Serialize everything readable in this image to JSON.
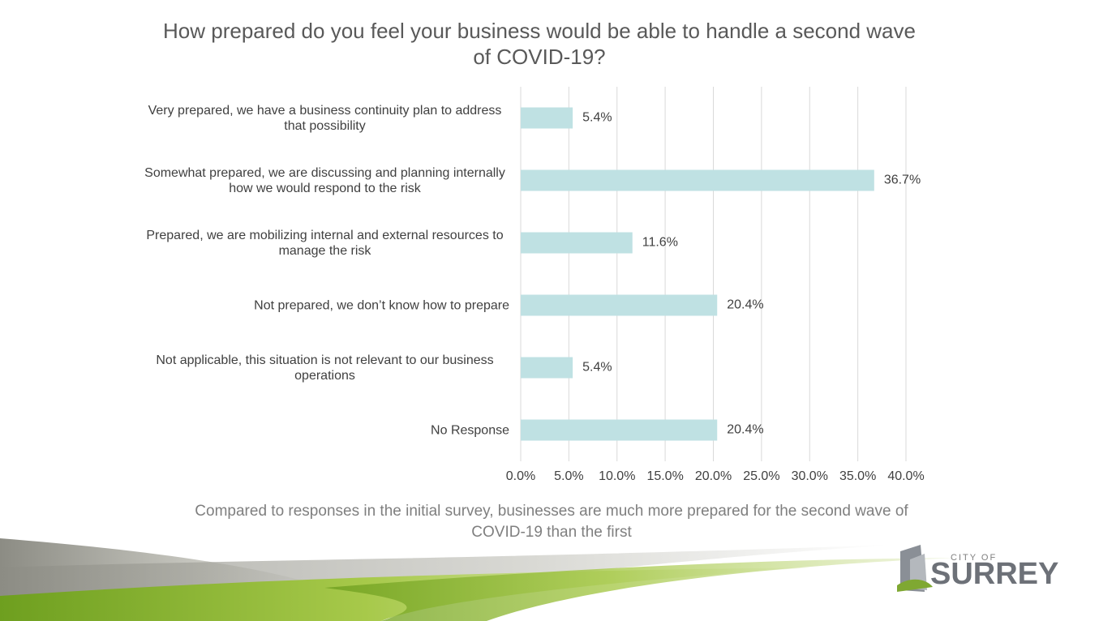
{
  "chart_data": {
    "type": "bar",
    "orientation": "horizontal",
    "title": "How prepared do you feel your business would be able to handle a second wave of COVID-19?",
    "categories": [
      "Very prepared, we have a business continuity plan to address that possibility",
      "Somewhat prepared, we are discussing and planning internally how we would respond to the risk",
      "Prepared, we are mobilizing internal and external resources to manage the risk",
      "Not prepared, we don’t know how to prepare",
      "Not applicable, this situation is not relevant to our business operations",
      "No Response"
    ],
    "values": [
      5.4,
      36.7,
      11.6,
      20.4,
      5.4,
      20.4
    ],
    "value_labels": [
      "5.4%",
      "36.7%",
      "11.6%",
      "20.4%",
      "5.4%",
      "20.4%"
    ],
    "color": "#bfe1e3",
    "xlim": [
      0,
      40
    ],
    "xticks": [
      {
        "value": 0,
        "label": "0.0%"
      },
      {
        "value": 5,
        "label": "5.0%"
      },
      {
        "value": 10,
        "label": "10.0%"
      },
      {
        "value": 15,
        "label": "15.0%"
      },
      {
        "value": 20,
        "label": "20.0%"
      },
      {
        "value": 25,
        "label": "25.0%"
      },
      {
        "value": 30,
        "label": "30.0%"
      },
      {
        "value": 35,
        "label": "35.0%"
      },
      {
        "value": 40,
        "label": "40.0%"
      }
    ],
    "grid": true,
    "caption": "Compared to responses in the initial survey, businesses are much more prepared for the second wave of COVID-19 than the first"
  },
  "logo": {
    "small": "CITY OF",
    "name": "SURREY"
  }
}
